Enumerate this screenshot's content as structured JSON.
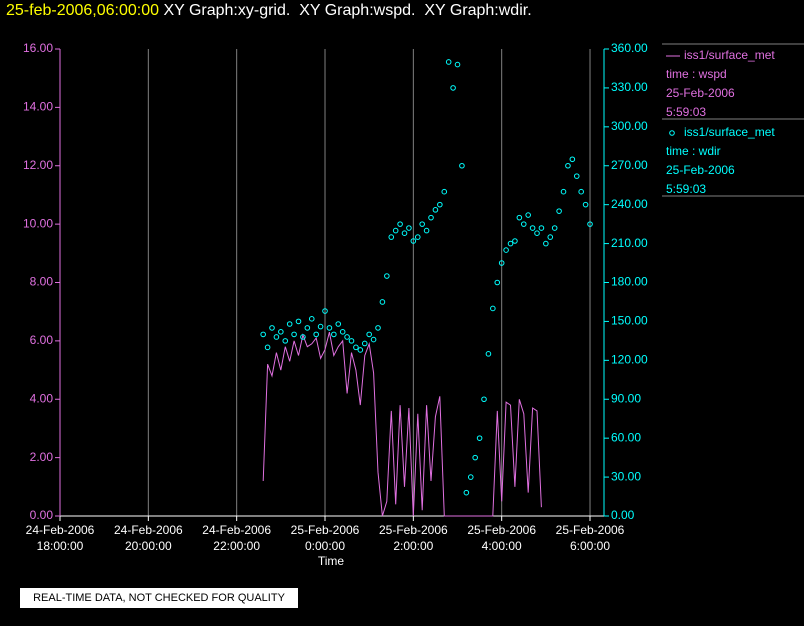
{
  "chart_data": {
    "type": "line",
    "title": "25-feb-2006,06:00:00",
    "subtitle": " XY Graph:xy-grid.  XY Graph:wspd.  XY Graph:wdir.",
    "x_label": "Time",
    "footer": "REAL-TIME DATA, NOT CHECKED FOR QUALITY",
    "grid": true,
    "legend": "right",
    "xlim": [
      "2006-02-24T18:00",
      "2006-02-25T06:19"
    ],
    "xticks": [
      {
        "value": "2006-02-24T18:00",
        "label": [
          "24-Feb-2006",
          "18:00:00"
        ]
      },
      {
        "value": "2006-02-24T20:00",
        "label": [
          "24-Feb-2006",
          "20:00:00"
        ]
      },
      {
        "value": "2006-02-24T22:00",
        "label": [
          "24-Feb-2006",
          "22:00:00"
        ]
      },
      {
        "value": "2006-02-25T00:00",
        "label": [
          "25-Feb-2006",
          "0:00:00"
        ]
      },
      {
        "value": "2006-02-25T02:00",
        "label": [
          "25-Feb-2006",
          "2:00:00"
        ]
      },
      {
        "value": "2006-02-25T04:00",
        "label": [
          "25-Feb-2006",
          "4:00:00"
        ]
      },
      {
        "value": "2006-02-25T06:00",
        "label": [
          "25-Feb-2006",
          "6:00:00"
        ]
      }
    ],
    "ylim": [
      0,
      16
    ],
    "yticks": [
      {
        "value": 0,
        "label": "0.00"
      },
      {
        "value": 2,
        "label": "2.00"
      },
      {
        "value": 4,
        "label": "4.00"
      },
      {
        "value": 6,
        "label": "6.00"
      },
      {
        "value": 8,
        "label": "8.00"
      },
      {
        "value": 10,
        "label": "10.00"
      },
      {
        "value": 12,
        "label": "12.00"
      },
      {
        "value": 14,
        "label": "14.00"
      },
      {
        "value": 16,
        "label": "16.00"
      }
    ],
    "y2lim": [
      0,
      360
    ],
    "y2ticks": [
      {
        "value": 0,
        "label": "0.00"
      },
      {
        "value": 30,
        "label": "30.00"
      },
      {
        "value": 60,
        "label": "60.00"
      },
      {
        "value": 90,
        "label": "90.00"
      },
      {
        "value": 120,
        "label": "120.00"
      },
      {
        "value": 150,
        "label": "150.00"
      },
      {
        "value": 180,
        "label": "180.00"
      },
      {
        "value": 210,
        "label": "210.00"
      },
      {
        "value": 240,
        "label": "240.00"
      },
      {
        "value": 270,
        "label": "270.00"
      },
      {
        "value": 300,
        "label": "300.00"
      },
      {
        "value": 330,
        "label": "330.00"
      },
      {
        "value": 360,
        "label": "360.00"
      }
    ],
    "x": [
      "2006-02-24T22:36",
      "2006-02-24T22:42",
      "2006-02-24T22:48",
      "2006-02-24T22:54",
      "2006-02-24T23:00",
      "2006-02-24T23:06",
      "2006-02-24T23:12",
      "2006-02-24T23:18",
      "2006-02-24T23:24",
      "2006-02-24T23:30",
      "2006-02-24T23:36",
      "2006-02-24T23:42",
      "2006-02-24T23:48",
      "2006-02-24T23:54",
      "2006-02-25T00:00",
      "2006-02-25T00:06",
      "2006-02-25T00:12",
      "2006-02-25T00:18",
      "2006-02-25T00:24",
      "2006-02-25T00:30",
      "2006-02-25T00:36",
      "2006-02-25T00:42",
      "2006-02-25T00:48",
      "2006-02-25T00:54",
      "2006-02-25T01:00",
      "2006-02-25T01:06",
      "2006-02-25T01:12",
      "2006-02-25T01:18",
      "2006-02-25T01:24",
      "2006-02-25T01:30",
      "2006-02-25T01:36",
      "2006-02-25T01:42",
      "2006-02-25T01:48",
      "2006-02-25T01:54",
      "2006-02-25T02:00",
      "2006-02-25T02:06",
      "2006-02-25T02:12",
      "2006-02-25T02:18",
      "2006-02-25T02:24",
      "2006-02-25T02:30",
      "2006-02-25T02:36",
      "2006-02-25T02:42",
      "2006-02-25T02:48",
      "2006-02-25T02:54",
      "2006-02-25T03:00",
      "2006-02-25T03:06",
      "2006-02-25T03:12",
      "2006-02-25T03:18",
      "2006-02-25T03:24",
      "2006-02-25T03:30",
      "2006-02-25T03:36",
      "2006-02-25T03:42",
      "2006-02-25T03:48",
      "2006-02-25T03:54",
      "2006-02-25T04:00",
      "2006-02-25T04:06",
      "2006-02-25T04:12",
      "2006-02-25T04:18",
      "2006-02-25T04:24",
      "2006-02-25T04:30",
      "2006-02-25T04:36",
      "2006-02-25T04:42",
      "2006-02-25T04:48",
      "2006-02-25T04:54",
      "2006-02-25T05:00",
      "2006-02-25T05:06",
      "2006-02-25T05:12",
      "2006-02-25T05:18",
      "2006-02-25T05:24",
      "2006-02-25T05:30",
      "2006-02-25T05:36",
      "2006-02-25T05:42",
      "2006-02-25T05:48",
      "2006-02-25T05:54",
      "2006-02-25T06:00"
    ],
    "series": [
      {
        "name": "iss1/surface_met",
        "legend_lines": [
          "time : wspd",
          "25-Feb-2006",
          "5:59:03"
        ],
        "color": "#e070e0",
        "style": "line",
        "values": [
          1.2,
          5.2,
          4.8,
          5.6,
          5.0,
          5.8,
          5.3,
          6.0,
          5.5,
          6.2,
          5.8,
          5.9,
          6.1,
          5.4,
          5.7,
          6.3,
          5.5,
          5.8,
          6.0,
          4.2,
          5.6,
          5.0,
          3.8,
          5.5,
          5.9,
          4.9,
          1.5,
          0.0,
          0.5,
          3.6,
          0.4,
          3.8,
          1.0,
          3.7,
          0.0,
          3.5,
          0.2,
          3.8,
          1.2,
          3.4,
          4.1,
          0.0,
          0,
          0,
          0,
          0,
          0,
          0,
          0,
          0,
          0,
          0,
          0,
          3.6,
          0.5,
          3.9,
          3.8,
          1.0,
          4.0,
          3.5,
          0.8,
          3.7,
          3.6,
          0.3,
          null,
          null,
          null,
          null,
          null,
          null,
          null,
          null,
          null,
          null,
          null
        ]
      },
      {
        "name": "iss1/surface_met",
        "legend_lines": [
          "time : wdir",
          "25-Feb-2006",
          "5:59:03"
        ],
        "color": "#00ffff",
        "style": "points",
        "axis": "y2",
        "values": [
          140,
          130,
          145,
          138,
          142,
          135,
          148,
          140,
          150,
          138,
          145,
          152,
          140,
          146,
          158,
          145,
          140,
          148,
          142,
          138,
          135,
          130,
          128,
          133,
          140,
          136,
          145,
          165,
          185,
          215,
          220,
          225,
          218,
          222,
          212,
          215,
          225,
          220,
          230,
          236,
          240,
          250,
          350,
          330,
          348,
          270,
          18,
          30,
          45,
          60,
          90,
          125,
          160,
          180,
          195,
          205,
          210,
          212,
          230,
          225,
          232,
          222,
          218,
          222,
          210,
          215,
          222,
          235,
          250,
          270,
          275,
          262,
          250,
          240,
          225
        ]
      }
    ]
  }
}
